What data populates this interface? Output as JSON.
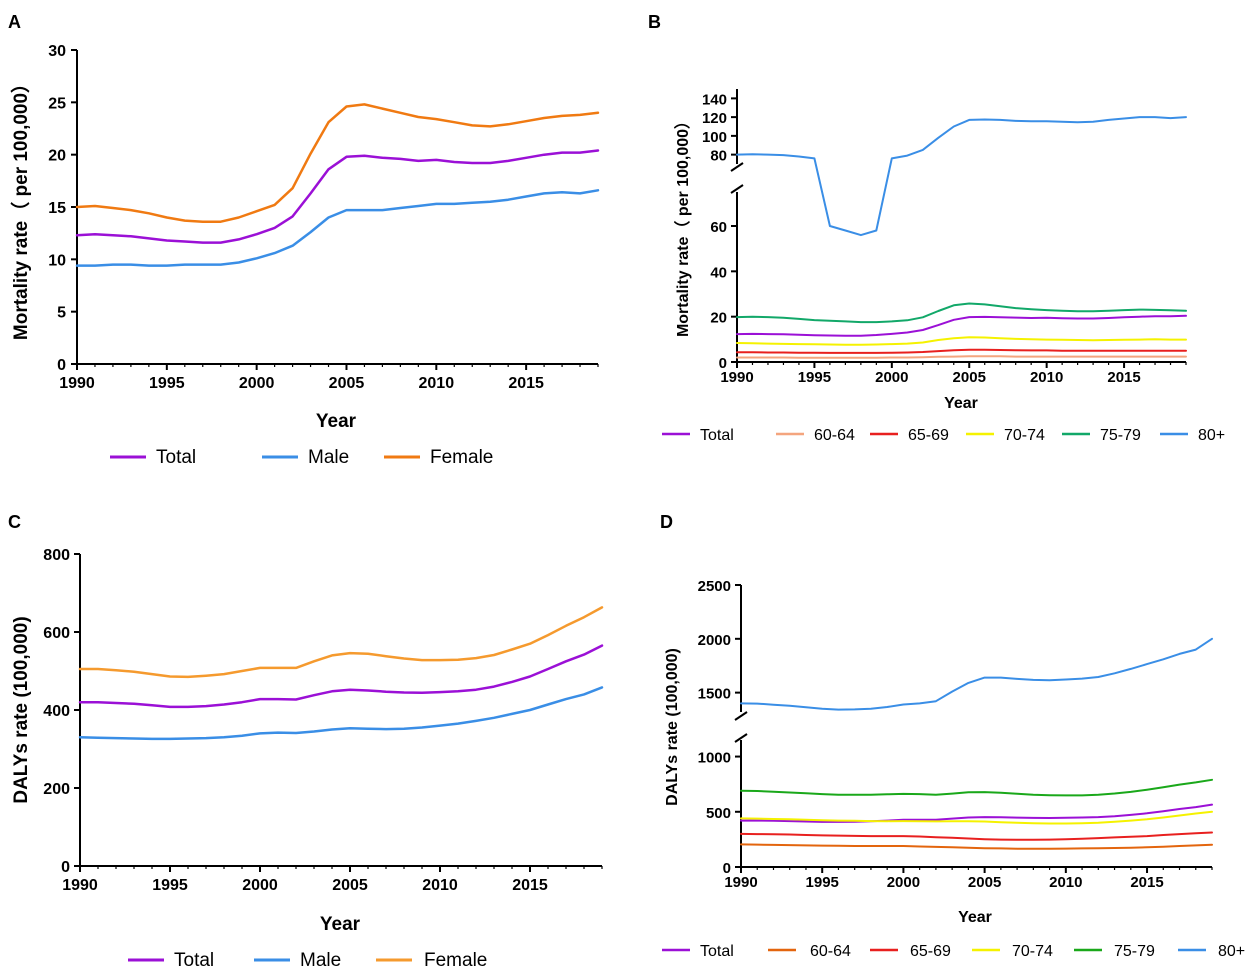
{
  "colors": {
    "total": "#9b10d6",
    "male": "#3a8ee6",
    "female": "#f07a12",
    "femaleC": "#f59a2e",
    "a6064": "#f4a57e",
    "a6064D": "#e3650e",
    "a6569": "#e8201f",
    "a7074": "#f5f200",
    "a7579": "#12a869",
    "a7579D": "#1aa81a",
    "a80": "#3a8ee6"
  },
  "chart_data": [
    {
      "id": "A",
      "panel_label": "A",
      "type": "line",
      "xlabel": "Year",
      "ylabel": "Mortality rate（ per 100,000）",
      "xlim": [
        1990,
        2019
      ],
      "ylim": [
        0,
        30
      ],
      "x_ticks": [
        "1990",
        "1995",
        "2000",
        "2005",
        "2010",
        "2015"
      ],
      "y_ticks": [
        "0",
        "5",
        "10",
        "15",
        "20",
        "25",
        "30"
      ],
      "x": [
        1990,
        1991,
        1992,
        1993,
        1994,
        1995,
        1996,
        1997,
        1998,
        1999,
        2000,
        2001,
        2002,
        2003,
        2004,
        2005,
        2006,
        2007,
        2008,
        2009,
        2010,
        2011,
        2012,
        2013,
        2014,
        2015,
        2016,
        2017,
        2018,
        2019
      ],
      "series": [
        {
          "name": "Total",
          "color_key": "total",
          "values": [
            12.3,
            12.4,
            12.3,
            12.2,
            12.0,
            11.8,
            11.7,
            11.6,
            11.6,
            11.9,
            12.4,
            13.0,
            14.1,
            16.3,
            18.6,
            19.8,
            19.9,
            19.7,
            19.6,
            19.4,
            19.5,
            19.3,
            19.2,
            19.2,
            19.4,
            19.7,
            20.0,
            20.2,
            20.2,
            20.4
          ]
        },
        {
          "name": "Male",
          "color_key": "male",
          "values": [
            9.4,
            9.4,
            9.5,
            9.5,
            9.4,
            9.4,
            9.5,
            9.5,
            9.5,
            9.7,
            10.1,
            10.6,
            11.3,
            12.6,
            14.0,
            14.7,
            14.7,
            14.7,
            14.9,
            15.1,
            15.3,
            15.3,
            15.4,
            15.5,
            15.7,
            16.0,
            16.3,
            16.4,
            16.3,
            16.6
          ]
        },
        {
          "name": "Female",
          "color_key": "female",
          "values": [
            15.0,
            15.1,
            14.9,
            14.7,
            14.4,
            14.0,
            13.7,
            13.6,
            13.6,
            14.0,
            14.6,
            15.2,
            16.8,
            20.1,
            23.1,
            24.6,
            24.8,
            24.4,
            24.0,
            23.6,
            23.4,
            23.1,
            22.8,
            22.7,
            22.9,
            23.2,
            23.5,
            23.7,
            23.8,
            24.0
          ]
        }
      ]
    },
    {
      "id": "B",
      "panel_label": "B",
      "type": "line",
      "xlabel": "Year",
      "ylabel": "Mortality rate（ per 100,000）",
      "xlim": [
        1990,
        2019
      ],
      "broken_axis": true,
      "ylim_lower": [
        0,
        75
      ],
      "ylim_upper": [
        70,
        150
      ],
      "x_ticks": [
        "1990",
        "1995",
        "2000",
        "2005",
        "2010",
        "2015"
      ],
      "y_ticks_lower": [
        "0",
        "20",
        "40",
        "60"
      ],
      "y_ticks_upper": [
        "80",
        "100",
        "120",
        "140"
      ],
      "x": [
        1990,
        1991,
        1992,
        1993,
        1994,
        1995,
        1996,
        1997,
        1998,
        1999,
        2000,
        2001,
        2002,
        2003,
        2004,
        2005,
        2006,
        2007,
        2008,
        2009,
        2010,
        2011,
        2012,
        2013,
        2014,
        2015,
        2016,
        2017,
        2018,
        2019
      ],
      "series": [
        {
          "name": "Total",
          "color_key": "total",
          "values": [
            12.3,
            12.4,
            12.3,
            12.2,
            12.0,
            11.8,
            11.7,
            11.6,
            11.6,
            11.9,
            12.4,
            13.0,
            14.1,
            16.3,
            18.6,
            19.8,
            19.9,
            19.7,
            19.6,
            19.4,
            19.5,
            19.3,
            19.2,
            19.2,
            19.4,
            19.7,
            20.0,
            20.2,
            20.2,
            20.4
          ]
        },
        {
          "name": "60-64",
          "color_key": "a6064",
          "values": [
            2.0,
            2.0,
            2.0,
            2.0,
            1.9,
            1.9,
            1.9,
            1.9,
            1.9,
            1.9,
            2.0,
            2.0,
            2.1,
            2.3,
            2.4,
            2.5,
            2.5,
            2.5,
            2.4,
            2.4,
            2.4,
            2.4,
            2.4,
            2.4,
            2.4,
            2.4,
            2.4,
            2.4,
            2.4,
            2.4
          ]
        },
        {
          "name": "65-69",
          "color_key": "a6569",
          "values": [
            4.3,
            4.3,
            4.2,
            4.2,
            4.1,
            4.1,
            4.0,
            4.0,
            4.0,
            4.0,
            4.1,
            4.2,
            4.4,
            4.8,
            5.2,
            5.4,
            5.4,
            5.3,
            5.2,
            5.1,
            5.1,
            5.0,
            5.0,
            5.0,
            5.0,
            5.0,
            5.0,
            5.0,
            5.0,
            5.0
          ]
        },
        {
          "name": "70-74",
          "color_key": "a7074",
          "values": [
            8.4,
            8.3,
            8.1,
            8.0,
            7.9,
            7.8,
            7.7,
            7.6,
            7.6,
            7.7,
            7.9,
            8.1,
            8.6,
            9.7,
            10.5,
            10.9,
            10.8,
            10.5,
            10.2,
            10.0,
            9.9,
            9.8,
            9.7,
            9.6,
            9.7,
            9.8,
            9.9,
            10.0,
            9.9,
            9.9
          ]
        },
        {
          "name": "75-79",
          "color_key": "a7579",
          "values": [
            19.8,
            20.0,
            19.8,
            19.5,
            19.0,
            18.5,
            18.2,
            17.9,
            17.6,
            17.6,
            17.9,
            18.4,
            19.7,
            22.5,
            25.0,
            25.8,
            25.4,
            24.6,
            23.8,
            23.3,
            22.9,
            22.6,
            22.4,
            22.4,
            22.6,
            22.9,
            23.1,
            23.0,
            22.8,
            22.6
          ]
        },
        {
          "name": "80+",
          "color_key": "a80",
          "values": [
            80,
            80.5,
            80,
            79.5,
            78,
            76,
            60,
            58,
            56,
            58,
            76,
            79,
            85,
            98,
            110,
            117,
            117.5,
            117,
            116,
            115.5,
            115.5,
            115,
            114.5,
            115,
            117,
            118.5,
            120,
            120,
            119,
            120
          ]
        }
      ]
    },
    {
      "id": "C",
      "panel_label": "C",
      "type": "line",
      "xlabel": "Year",
      "ylabel": "DALYs  rate (100,000)",
      "xlim": [
        1990,
        2019
      ],
      "ylim": [
        0,
        800
      ],
      "x_ticks": [
        "1990",
        "1995",
        "2000",
        "2005",
        "2010",
        "2015"
      ],
      "y_ticks": [
        "0",
        "200",
        "400",
        "600",
        "800"
      ],
      "x": [
        1990,
        1991,
        1992,
        1993,
        1994,
        1995,
        1996,
        1997,
        1998,
        1999,
        2000,
        2001,
        2002,
        2003,
        2004,
        2005,
        2006,
        2007,
        2008,
        2009,
        2010,
        2011,
        2012,
        2013,
        2014,
        2015,
        2016,
        2017,
        2018,
        2019
      ],
      "series": [
        {
          "name": "Total",
          "color_key": "total",
          "values": [
            420,
            420,
            418,
            416,
            412,
            408,
            408,
            410,
            414,
            420,
            428,
            428,
            427,
            438,
            448,
            452,
            450,
            447,
            445,
            444,
            446,
            448,
            452,
            460,
            472,
            486,
            505,
            525,
            542,
            565
          ]
        },
        {
          "name": "Male",
          "color_key": "male",
          "values": [
            330,
            329,
            328,
            327,
            326,
            326,
            327,
            328,
            330,
            334,
            340,
            342,
            341,
            345,
            350,
            353,
            352,
            351,
            352,
            355,
            360,
            365,
            372,
            380,
            390,
            400,
            414,
            428,
            440,
            458
          ]
        },
        {
          "name": "Female",
          "color_key": "femaleC",
          "values": [
            505,
            505,
            502,
            498,
            492,
            486,
            485,
            488,
            492,
            500,
            508,
            508,
            508,
            525,
            540,
            546,
            544,
            538,
            532,
            528,
            528,
            529,
            533,
            541,
            555,
            570,
            592,
            616,
            638,
            663
          ]
        }
      ]
    },
    {
      "id": "D",
      "panel_label": "D",
      "type": "line",
      "xlabel": "Year",
      "ylabel": "DALYs  rate (100,000)",
      "xlim": [
        1990,
        2019
      ],
      "broken_axis": true,
      "ylim_lower": [
        0,
        1150
      ],
      "ylim_upper": [
        1320,
        2500
      ],
      "x_ticks": [
        "1990",
        "1995",
        "2000",
        "2005",
        "2010",
        "2015"
      ],
      "y_ticks_lower": [
        "0",
        "500",
        "1000"
      ],
      "y_ticks_upper": [
        "1500",
        "2000",
        "2500"
      ],
      "x": [
        1990,
        1991,
        1992,
        1993,
        1994,
        1995,
        1996,
        1997,
        1998,
        1999,
        2000,
        2001,
        2002,
        2003,
        2004,
        2005,
        2006,
        2007,
        2008,
        2009,
        2010,
        2011,
        2012,
        2013,
        2014,
        2015,
        2016,
        2017,
        2018,
        2019
      ],
      "series": [
        {
          "name": "Total",
          "color_key": "total",
          "values": [
            420,
            420,
            418,
            416,
            412,
            408,
            408,
            410,
            414,
            420,
            428,
            428,
            427,
            438,
            448,
            452,
            450,
            447,
            445,
            444,
            446,
            448,
            452,
            460,
            472,
            486,
            505,
            525,
            542,
            565
          ]
        },
        {
          "name": "60-64",
          "color_key": "a6064D",
          "values": [
            205,
            203,
            200,
            198,
            196,
            194,
            192,
            190,
            190,
            190,
            190,
            186,
            182,
            178,
            174,
            170,
            168,
            166,
            166,
            166,
            167,
            168,
            170,
            172,
            175,
            178,
            184,
            190,
            196,
            202
          ]
        },
        {
          "name": "65-69",
          "color_key": "a6569",
          "values": [
            300,
            298,
            296,
            294,
            290,
            286,
            284,
            282,
            280,
            280,
            280,
            276,
            270,
            264,
            258,
            252,
            248,
            246,
            246,
            248,
            252,
            256,
            262,
            268,
            274,
            280,
            290,
            298,
            305,
            312
          ]
        },
        {
          "name": "70-74",
          "color_key": "a7074",
          "values": [
            440,
            438,
            435,
            432,
            428,
            424,
            420,
            418,
            416,
            415,
            416,
            415,
            413,
            414,
            415,
            412,
            406,
            400,
            396,
            394,
            394,
            396,
            400,
            410,
            420,
            432,
            448,
            466,
            484,
            500
          ]
        },
        {
          "name": "75-79",
          "color_key": "a7579D",
          "values": [
            690,
            688,
            682,
            675,
            668,
            660,
            655,
            654,
            655,
            658,
            662,
            660,
            655,
            665,
            676,
            678,
            672,
            664,
            655,
            650,
            648,
            648,
            655,
            666,
            680,
            700,
            722,
            746,
            766,
            790
          ]
        },
        {
          "name": "80+",
          "color_key": "a80",
          "values": [
            1400,
            1398,
            1388,
            1378,
            1365,
            1350,
            1342,
            1344,
            1350,
            1366,
            1390,
            1400,
            1420,
            1510,
            1590,
            1640,
            1640,
            1628,
            1618,
            1615,
            1622,
            1630,
            1645,
            1680,
            1720,
            1765,
            1810,
            1860,
            1900,
            2000
          ]
        }
      ]
    }
  ]
}
